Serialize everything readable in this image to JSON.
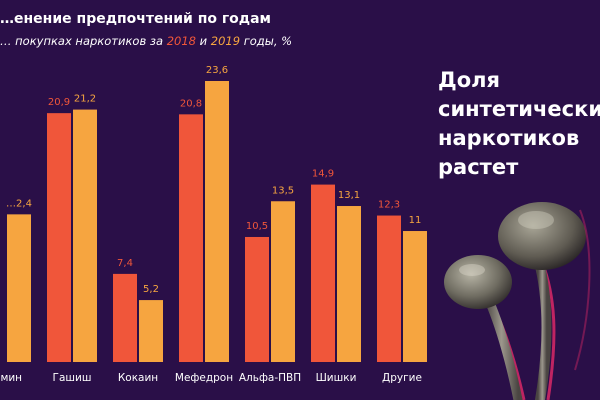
{
  "title": "…енение предпочтений по годам",
  "subtitle": {
    "prefix": "… покупках наркотиков за",
    "year1": "2018",
    "mid": "и",
    "year2": "2019",
    "suffix": "годы, %"
  },
  "headline": [
    "Доля",
    "синтетически…",
    "наркотиков",
    "растет"
  ],
  "colors": {
    "background": "#2a0f48",
    "series_2018": "#f0563a",
    "series_2019": "#f6a540"
  },
  "chart_data": {
    "type": "bar",
    "title": "…енение предпочтений по годам",
    "categories": [
      "…мин",
      "Гашиш",
      "Кокаин",
      "Мефедрон",
      "Альфа-ПВП",
      "Шишки",
      "Другие"
    ],
    "series": [
      {
        "name": "2018",
        "values": [
          null,
          20.9,
          7.4,
          20.8,
          10.5,
          14.9,
          12.3
        ],
        "labels": [
          "",
          "20,9",
          "7,4",
          "20,8",
          "10,5",
          "14,9",
          "12,3"
        ]
      },
      {
        "name": "2019",
        "values": [
          12.4,
          21.2,
          5.2,
          23.6,
          13.5,
          13.1,
          11
        ],
        "labels": [
          "…2,4",
          "21,2",
          "5,2",
          "23,6",
          "13,5",
          "13,1",
          "11"
        ]
      }
    ],
    "ylim": [
      0,
      23.6
    ],
    "grid": false,
    "legend": "none"
  }
}
